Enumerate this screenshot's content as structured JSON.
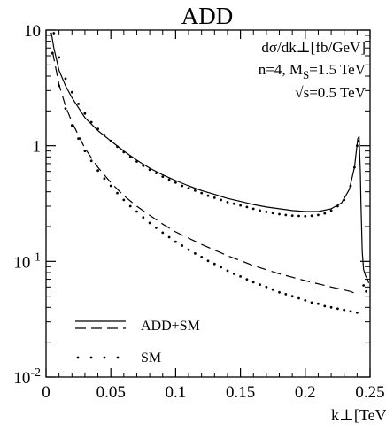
{
  "chart_data": {
    "type": "line",
    "title": "ADD",
    "xlabel": "k⊥[TeV]",
    "ylabel": "",
    "xlim": [
      0,
      0.25
    ],
    "ylim": [
      0.01,
      10
    ],
    "yscale": "log",
    "x_ticks": [
      {
        "value": 0,
        "label": "0"
      },
      {
        "value": 0.05,
        "label": "0.05"
      },
      {
        "value": 0.1,
        "label": "0.1"
      },
      {
        "value": 0.15,
        "label": "0.15"
      },
      {
        "value": 0.2,
        "label": "0.2"
      },
      {
        "value": 0.25,
        "label": "0.25"
      }
    ],
    "y_ticks": [
      {
        "value": 10,
        "label": "10",
        "sup": ""
      },
      {
        "value": 1,
        "label": "1",
        "sup": ""
      },
      {
        "value": 0.1,
        "label": "10",
        "sup": "-1"
      },
      {
        "value": 0.01,
        "label": "10",
        "sup": "-2"
      }
    ],
    "annotations": {
      "quantity": "dσ/dk⊥[fb/GeV]",
      "params_main": "n=4, M",
      "params_sub": "S",
      "params_tail": "=1.5 TeV",
      "energy": "√s=0.5 TeV"
    },
    "legend": {
      "placement": "bottom-left",
      "entries": [
        {
          "label": "ADD+SM",
          "styles": [
            "solid",
            "dashed"
          ]
        },
        {
          "label": "SM",
          "styles": [
            "dotted"
          ]
        }
      ]
    },
    "series": [
      {
        "style": "solid",
        "points": [
          [
            0.004,
            9.5
          ],
          [
            0.006,
            7.0
          ],
          [
            0.01,
            4.5
          ],
          [
            0.015,
            3.3
          ],
          [
            0.02,
            2.6
          ],
          [
            0.03,
            1.75
          ],
          [
            0.04,
            1.35
          ],
          [
            0.05,
            1.1
          ],
          [
            0.06,
            0.9
          ],
          [
            0.07,
            0.75
          ],
          [
            0.08,
            0.64
          ],
          [
            0.09,
            0.56
          ],
          [
            0.1,
            0.5
          ],
          [
            0.11,
            0.45
          ],
          [
            0.12,
            0.41
          ],
          [
            0.13,
            0.38
          ],
          [
            0.14,
            0.35
          ],
          [
            0.15,
            0.33
          ],
          [
            0.16,
            0.31
          ],
          [
            0.17,
            0.295
          ],
          [
            0.18,
            0.285
          ],
          [
            0.19,
            0.275
          ],
          [
            0.2,
            0.27
          ],
          [
            0.21,
            0.27
          ],
          [
            0.22,
            0.285
          ],
          [
            0.228,
            0.32
          ],
          [
            0.234,
            0.42
          ],
          [
            0.238,
            0.65
          ],
          [
            0.2405,
            1.15
          ],
          [
            0.2415,
            1.2
          ],
          [
            0.2425,
            0.6
          ],
          [
            0.243,
            0.3
          ],
          [
            0.244,
            0.12
          ],
          [
            0.245,
            0.085
          ],
          [
            0.2465,
            0.075
          ],
          [
            0.248,
            0.07
          ],
          [
            0.249,
            0.065
          ]
        ]
      },
      {
        "style": "dashed",
        "points": [
          [
            0.005,
            6.5
          ],
          [
            0.01,
            3.4
          ],
          [
            0.015,
            2.2
          ],
          [
            0.02,
            1.6
          ],
          [
            0.03,
            0.95
          ],
          [
            0.04,
            0.65
          ],
          [
            0.05,
            0.48
          ],
          [
            0.06,
            0.37
          ],
          [
            0.07,
            0.3
          ],
          [
            0.08,
            0.25
          ],
          [
            0.09,
            0.21
          ],
          [
            0.1,
            0.18
          ],
          [
            0.12,
            0.14
          ],
          [
            0.14,
            0.112
          ],
          [
            0.16,
            0.092
          ],
          [
            0.18,
            0.078
          ],
          [
            0.2,
            0.068
          ],
          [
            0.22,
            0.06
          ],
          [
            0.235,
            0.055
          ],
          [
            0.24,
            0.052
          ]
        ]
      },
      {
        "style": "dotted-sm",
        "points": [
          [
            0.005,
            6.3
          ],
          [
            0.01,
            3.3
          ],
          [
            0.015,
            2.1
          ],
          [
            0.02,
            1.5
          ],
          [
            0.025,
            1.15
          ],
          [
            0.03,
            0.9
          ],
          [
            0.035,
            0.74
          ],
          [
            0.04,
            0.61
          ],
          [
            0.045,
            0.52
          ],
          [
            0.05,
            0.45
          ],
          [
            0.055,
            0.39
          ],
          [
            0.06,
            0.34
          ],
          [
            0.065,
            0.3
          ],
          [
            0.07,
            0.27
          ],
          [
            0.075,
            0.24
          ],
          [
            0.08,
            0.215
          ],
          [
            0.085,
            0.195
          ],
          [
            0.09,
            0.177
          ],
          [
            0.095,
            0.162
          ],
          [
            0.1,
            0.148
          ],
          [
            0.105,
            0.137
          ],
          [
            0.11,
            0.126
          ],
          [
            0.115,
            0.117
          ],
          [
            0.12,
            0.109
          ],
          [
            0.125,
            0.101
          ],
          [
            0.13,
            0.095
          ],
          [
            0.135,
            0.089
          ],
          [
            0.14,
            0.083
          ],
          [
            0.145,
            0.078
          ],
          [
            0.15,
            0.074
          ],
          [
            0.155,
            0.07
          ],
          [
            0.16,
            0.066
          ],
          [
            0.165,
            0.063
          ],
          [
            0.17,
            0.06
          ],
          [
            0.175,
            0.057
          ],
          [
            0.18,
            0.054
          ],
          [
            0.185,
            0.052
          ],
          [
            0.19,
            0.05
          ],
          [
            0.195,
            0.048
          ],
          [
            0.2,
            0.046
          ],
          [
            0.205,
            0.044
          ],
          [
            0.21,
            0.043
          ],
          [
            0.215,
            0.041
          ],
          [
            0.22,
            0.04
          ],
          [
            0.225,
            0.039
          ],
          [
            0.23,
            0.038
          ],
          [
            0.235,
            0.037
          ],
          [
            0.24,
            0.036
          ]
        ]
      },
      {
        "style": "dotted-add",
        "points": [
          [
            0.006,
            9.4
          ],
          [
            0.01,
            5.8
          ],
          [
            0.015,
            3.8
          ],
          [
            0.02,
            2.9
          ],
          [
            0.025,
            2.3
          ],
          [
            0.03,
            1.9
          ],
          [
            0.035,
            1.6
          ],
          [
            0.04,
            1.4
          ],
          [
            0.045,
            1.24
          ],
          [
            0.05,
            1.1
          ],
          [
            0.055,
            0.98
          ],
          [
            0.06,
            0.88
          ],
          [
            0.065,
            0.8
          ],
          [
            0.07,
            0.73
          ],
          [
            0.075,
            0.67
          ],
          [
            0.08,
            0.62
          ],
          [
            0.085,
            0.58
          ],
          [
            0.09,
            0.54
          ],
          [
            0.095,
            0.51
          ],
          [
            0.1,
            0.48
          ],
          [
            0.105,
            0.45
          ],
          [
            0.11,
            0.43
          ],
          [
            0.115,
            0.41
          ],
          [
            0.12,
            0.39
          ],
          [
            0.125,
            0.37
          ],
          [
            0.13,
            0.355
          ],
          [
            0.135,
            0.34
          ],
          [
            0.14,
            0.325
          ],
          [
            0.145,
            0.315
          ],
          [
            0.15,
            0.305
          ],
          [
            0.155,
            0.295
          ],
          [
            0.16,
            0.285
          ],
          [
            0.165,
            0.275
          ],
          [
            0.17,
            0.268
          ],
          [
            0.175,
            0.262
          ],
          [
            0.18,
            0.256
          ],
          [
            0.185,
            0.252
          ],
          [
            0.19,
            0.249
          ],
          [
            0.195,
            0.247
          ],
          [
            0.2,
            0.246
          ],
          [
            0.205,
            0.248
          ],
          [
            0.21,
            0.252
          ],
          [
            0.215,
            0.26
          ],
          [
            0.22,
            0.275
          ],
          [
            0.225,
            0.3
          ],
          [
            0.23,
            0.34
          ],
          [
            0.235,
            0.45
          ],
          [
            0.238,
            0.65
          ],
          [
            0.24,
            1.0
          ],
          [
            0.2412,
            1.1
          ],
          [
            0.245,
            0.062
          ],
          [
            0.247,
            0.055
          ]
        ]
      }
    ]
  }
}
